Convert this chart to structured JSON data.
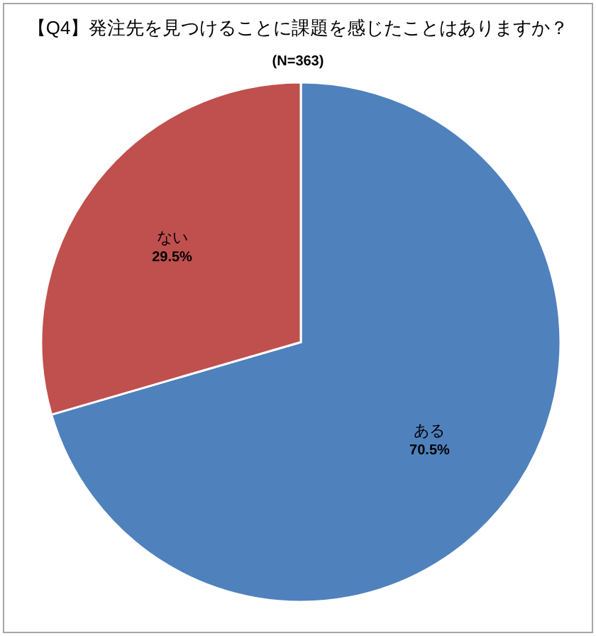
{
  "chart_data": {
    "type": "pie",
    "title": "【Q4】発注先を見つけることに課題を感じたことはありますか？",
    "subtitle": "(N=363)",
    "categories": [
      "ある",
      "ない"
    ],
    "values": [
      70.5,
      29.5
    ],
    "colors": [
      "#4f81bd",
      "#c0504d"
    ],
    "value_labels": [
      "70.5%",
      "29.5%"
    ]
  }
}
